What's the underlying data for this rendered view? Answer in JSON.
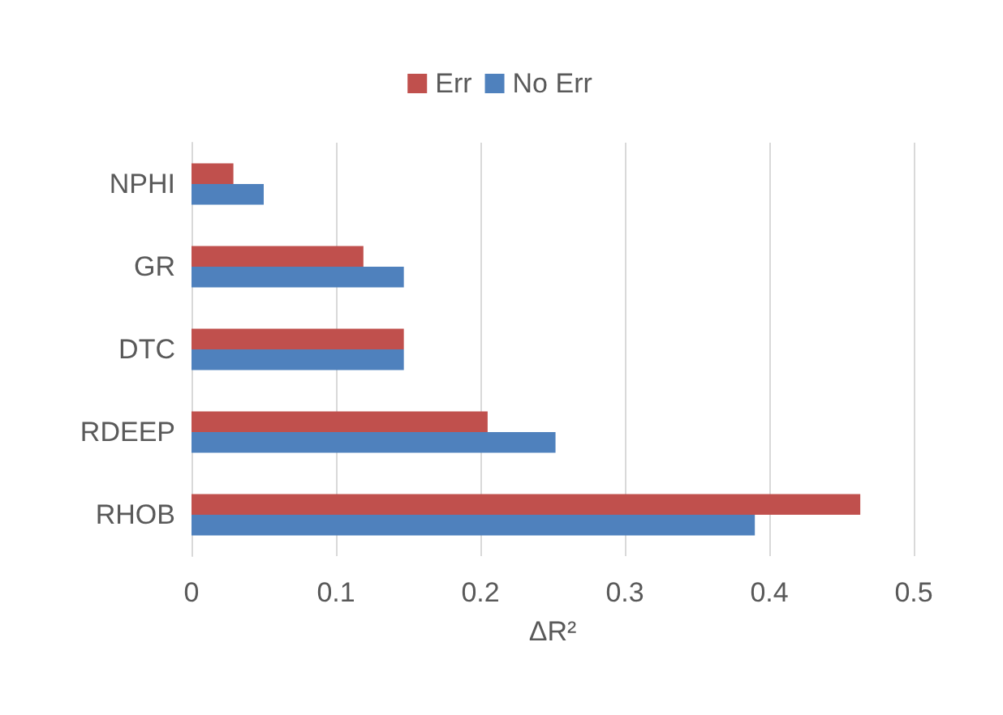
{
  "chart_data": {
    "type": "bar",
    "orientation": "horizontal",
    "xlabel": "ΔR²",
    "categories": [
      "NPHI",
      "GR",
      "DTC",
      "RDEEP",
      "RHOB"
    ],
    "series": [
      {
        "name": "Err",
        "color": "#c0504d",
        "values": [
          0.029,
          0.119,
          0.147,
          0.205,
          0.463
        ]
      },
      {
        "name": "No Err",
        "color": "#4f81bd",
        "values": [
          0.05,
          0.147,
          0.147,
          0.252,
          0.39
        ]
      }
    ],
    "xlim": [
      0,
      0.5
    ],
    "xticks": [
      0,
      0.1,
      0.2,
      0.3,
      0.4,
      0.5
    ],
    "grid": "x",
    "legend": "top"
  }
}
